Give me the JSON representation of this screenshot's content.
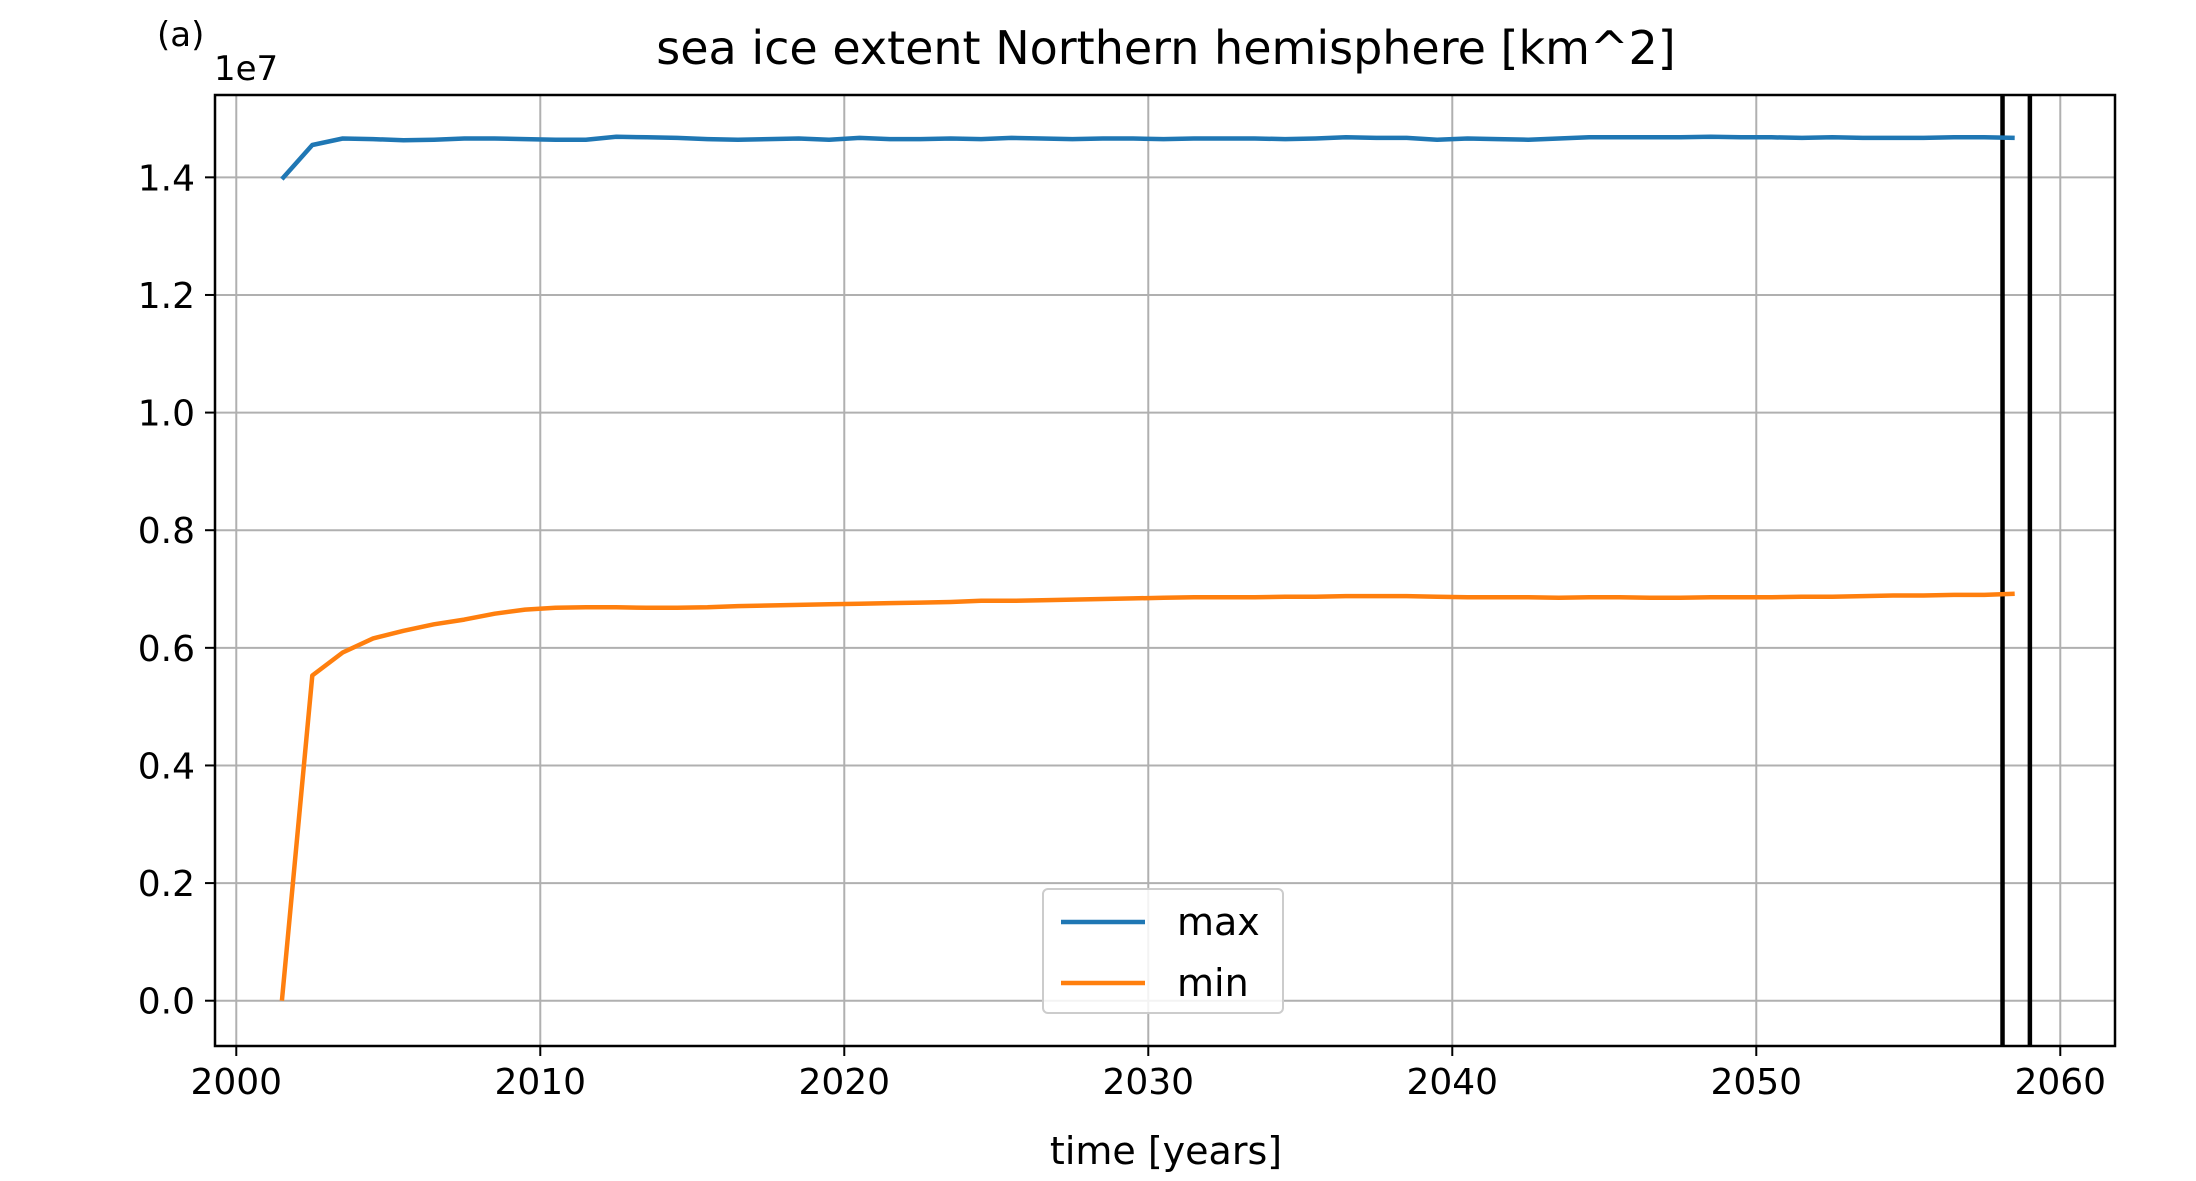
{
  "panel_label": "(a)",
  "chart_data": {
    "type": "line",
    "title": "sea ice extent Northern hemisphere [km^2]",
    "xlabel": "time [years]",
    "ylabel": "",
    "y_offset_label": "1e7",
    "xlim": [
      1999.3,
      2061.8
    ],
    "ylim": [
      -0.077,
      1.54
    ],
    "y_scale_factor": 10000000,
    "x_ticks": [
      2000,
      2010,
      2020,
      2030,
      2040,
      2050,
      2060
    ],
    "x_tick_labels": [
      "2000",
      "2010",
      "2020",
      "2030",
      "2040",
      "2050",
      "2060"
    ],
    "y_ticks": [
      0.0,
      0.2,
      0.4,
      0.6,
      0.8,
      1.0,
      1.2,
      1.4
    ],
    "y_tick_labels": [
      "0.0",
      "0.2",
      "0.4",
      "0.6",
      "0.8",
      "1.0",
      "1.2",
      "1.4"
    ],
    "grid": true,
    "legend_position": "bottom-center",
    "vertical_lines": [
      2058.1,
      2059.0
    ],
    "vertical_line_color": "#000000",
    "x": [
      2001.5,
      2002.5,
      2003.5,
      2004.5,
      2005.5,
      2006.5,
      2007.5,
      2008.5,
      2009.5,
      2010.5,
      2011.5,
      2012.5,
      2013.5,
      2014.5,
      2015.5,
      2016.5,
      2017.5,
      2018.5,
      2019.5,
      2020.5,
      2021.5,
      2022.5,
      2023.5,
      2024.5,
      2025.5,
      2026.5,
      2027.5,
      2028.5,
      2029.5,
      2030.5,
      2031.5,
      2032.5,
      2033.5,
      2034.5,
      2035.5,
      2036.5,
      2037.5,
      2038.5,
      2039.5,
      2040.5,
      2041.5,
      2042.5,
      2043.5,
      2044.5,
      2045.5,
      2046.5,
      2047.5,
      2048.5,
      2049.5,
      2050.5,
      2051.5,
      2052.5,
      2053.5,
      2054.5,
      2055.5,
      2056.5,
      2057.5,
      2058.5
    ],
    "series": [
      {
        "name": "max",
        "color": "#1f77b4",
        "values": [
          1.397,
          1.455,
          1.466,
          1.465,
          1.463,
          1.464,
          1.466,
          1.466,
          1.465,
          1.464,
          1.464,
          1.469,
          1.468,
          1.467,
          1.465,
          1.464,
          1.465,
          1.466,
          1.464,
          1.467,
          1.465,
          1.465,
          1.466,
          1.465,
          1.467,
          1.466,
          1.465,
          1.466,
          1.466,
          1.465,
          1.466,
          1.466,
          1.466,
          1.465,
          1.466,
          1.468,
          1.467,
          1.467,
          1.464,
          1.466,
          1.465,
          1.464,
          1.466,
          1.468,
          1.468,
          1.468,
          1.468,
          1.469,
          1.468,
          1.468,
          1.467,
          1.468,
          1.467,
          1.467,
          1.467,
          1.468,
          1.468,
          1.467
        ]
      },
      {
        "name": "min",
        "color": "#ff7f0e",
        "values": [
          0.0,
          0.553,
          0.592,
          0.616,
          0.629,
          0.64,
          0.648,
          0.658,
          0.665,
          0.668,
          0.669,
          0.669,
          0.668,
          0.668,
          0.669,
          0.671,
          0.672,
          0.673,
          0.674,
          0.675,
          0.676,
          0.677,
          0.678,
          0.68,
          0.68,
          0.681,
          0.682,
          0.683,
          0.684,
          0.685,
          0.686,
          0.686,
          0.686,
          0.687,
          0.687,
          0.688,
          0.688,
          0.688,
          0.687,
          0.686,
          0.686,
          0.686,
          0.685,
          0.686,
          0.686,
          0.685,
          0.685,
          0.686,
          0.686,
          0.686,
          0.687,
          0.687,
          0.688,
          0.689,
          0.689,
          0.69,
          0.69,
          0.692
        ]
      }
    ]
  }
}
